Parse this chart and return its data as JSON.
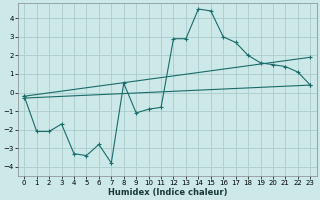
{
  "xlabel": "Humidex (Indice chaleur)",
  "background_color": "#cce8e8",
  "grid_color": "#aacccc",
  "line_color": "#1a6b6b",
  "xlim": [
    -0.5,
    23.5
  ],
  "ylim": [
    -4.5,
    4.8
  ],
  "xticks": [
    0,
    1,
    2,
    3,
    4,
    5,
    6,
    7,
    8,
    9,
    10,
    11,
    12,
    13,
    14,
    15,
    16,
    17,
    18,
    19,
    20,
    21,
    22,
    23
  ],
  "yticks": [
    -4,
    -3,
    -2,
    -1,
    0,
    1,
    2,
    3,
    4
  ],
  "curve1_x": [
    0,
    1,
    2,
    3,
    4,
    5,
    6,
    7,
    8,
    9,
    10,
    11,
    12,
    13,
    14,
    15,
    16,
    17,
    18,
    19,
    20,
    21,
    22,
    23
  ],
  "curve1_y": [
    -0.2,
    -2.1,
    -2.1,
    -1.7,
    -3.3,
    -3.4,
    -2.8,
    -3.8,
    0.5,
    -1.1,
    -0.9,
    -0.8,
    2.9,
    2.9,
    4.5,
    4.4,
    3.0,
    2.7,
    2.0,
    1.6,
    1.5,
    1.4,
    1.1,
    0.4
  ],
  "curve2_x": [
    0,
    23
  ],
  "curve2_y": [
    -0.3,
    0.4
  ],
  "curve3_x": [
    0,
    23
  ],
  "curve3_y": [
    -0.2,
    1.9
  ],
  "figsize": [
    3.2,
    2.0
  ],
  "dpi": 100
}
